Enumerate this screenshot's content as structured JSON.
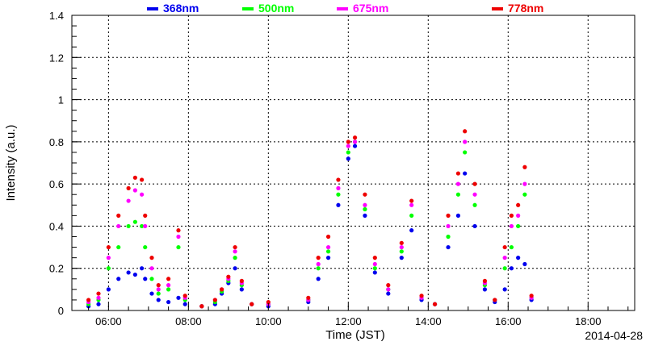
{
  "chart_data": {
    "type": "scatter",
    "title": "",
    "xlabel": "Time (JST)",
    "ylabel": "Intensity (a.u.)",
    "date_label": "2014-04-28",
    "grid": true,
    "legend_position": "top",
    "xlim": [
      "05:05",
      "19:10"
    ],
    "ylim": [
      0,
      1.4
    ],
    "x_ticks": [
      "06:00",
      "08:00",
      "10:00",
      "12:00",
      "14:00",
      "16:00",
      "18:00"
    ],
    "y_ticks": [
      "0",
      "0.2",
      "0.4",
      "0.6",
      "0.8",
      "1",
      "1.2",
      "1.4"
    ],
    "series": [
      {
        "name": "368nm",
        "color": "#0000ee",
        "points": [
          [
            "05:30",
            0.02
          ],
          [
            "05:45",
            0.03
          ],
          [
            "06:00",
            0.1
          ],
          [
            "06:15",
            0.15
          ],
          [
            "06:30",
            0.18
          ],
          [
            "06:40",
            0.17
          ],
          [
            "06:50",
            0.2
          ],
          [
            "06:55",
            0.15
          ],
          [
            "07:05",
            0.08
          ],
          [
            "07:15",
            0.05
          ],
          [
            "07:30",
            0.04
          ],
          [
            "07:45",
            0.06
          ],
          [
            "07:55",
            0.03
          ],
          [
            "08:20",
            0.02
          ],
          [
            "08:40",
            0.03
          ],
          [
            "08:50",
            0.08
          ],
          [
            "09:00",
            0.13
          ],
          [
            "09:10",
            0.2
          ],
          [
            "09:20",
            0.1
          ],
          [
            "09:35",
            0.03
          ],
          [
            "10:00",
            0.02
          ],
          [
            "11:00",
            0.04
          ],
          [
            "11:15",
            0.15
          ],
          [
            "11:30",
            0.25
          ],
          [
            "11:45",
            0.5
          ],
          [
            "12:00",
            0.72
          ],
          [
            "12:10",
            0.78
          ],
          [
            "12:25",
            0.45
          ],
          [
            "12:40",
            0.18
          ],
          [
            "13:00",
            0.08
          ],
          [
            "13:20",
            0.25
          ],
          [
            "13:35",
            0.38
          ],
          [
            "13:50",
            0.05
          ],
          [
            "14:10",
            0.03
          ],
          [
            "14:30",
            0.3
          ],
          [
            "14:45",
            0.45
          ],
          [
            "14:55",
            0.65
          ],
          [
            "15:10",
            0.4
          ],
          [
            "15:25",
            0.1
          ],
          [
            "15:40",
            0.04
          ],
          [
            "15:55",
            0.1
          ],
          [
            "16:05",
            0.2
          ],
          [
            "16:15",
            0.25
          ],
          [
            "16:25",
            0.22
          ],
          [
            "16:35",
            0.05
          ]
        ]
      },
      {
        "name": "500nm",
        "color": "#00ff00",
        "points": [
          [
            "05:30",
            0.03
          ],
          [
            "05:45",
            0.05
          ],
          [
            "06:00",
            0.2
          ],
          [
            "06:15",
            0.3
          ],
          [
            "06:30",
            0.4
          ],
          [
            "06:40",
            0.42
          ],
          [
            "06:50",
            0.4
          ],
          [
            "06:55",
            0.3
          ],
          [
            "07:05",
            0.15
          ],
          [
            "07:15",
            0.08
          ],
          [
            "07:30",
            0.1
          ],
          [
            "07:45",
            0.3
          ],
          [
            "07:55",
            0.05
          ],
          [
            "08:20",
            0.02
          ],
          [
            "08:40",
            0.04
          ],
          [
            "08:50",
            0.09
          ],
          [
            "09:00",
            0.14
          ],
          [
            "09:10",
            0.25
          ],
          [
            "09:20",
            0.12
          ],
          [
            "09:35",
            0.03
          ],
          [
            "10:00",
            0.03
          ],
          [
            "11:00",
            0.05
          ],
          [
            "11:15",
            0.2
          ],
          [
            "11:30",
            0.28
          ],
          [
            "11:45",
            0.55
          ],
          [
            "12:00",
            0.75
          ],
          [
            "12:10",
            0.8
          ],
          [
            "12:25",
            0.48
          ],
          [
            "12:40",
            0.2
          ],
          [
            "13:00",
            0.1
          ],
          [
            "13:20",
            0.28
          ],
          [
            "13:35",
            0.45
          ],
          [
            "13:50",
            0.06
          ],
          [
            "14:10",
            0.03
          ],
          [
            "14:30",
            0.35
          ],
          [
            "14:45",
            0.55
          ],
          [
            "14:55",
            0.75
          ],
          [
            "15:10",
            0.5
          ],
          [
            "15:25",
            0.12
          ],
          [
            "15:40",
            0.05
          ],
          [
            "15:55",
            0.2
          ],
          [
            "16:05",
            0.3
          ],
          [
            "16:15",
            0.4
          ],
          [
            "16:25",
            0.55
          ],
          [
            "16:35",
            0.06
          ]
        ]
      },
      {
        "name": "675nm",
        "color": "#ff00ff",
        "points": [
          [
            "05:30",
            0.04
          ],
          [
            "05:45",
            0.06
          ],
          [
            "06:00",
            0.25
          ],
          [
            "06:15",
            0.4
          ],
          [
            "06:30",
            0.52
          ],
          [
            "06:40",
            0.57
          ],
          [
            "06:50",
            0.55
          ],
          [
            "06:55",
            0.4
          ],
          [
            "07:05",
            0.2
          ],
          [
            "07:15",
            0.1
          ],
          [
            "07:30",
            0.12
          ],
          [
            "07:45",
            0.35
          ],
          [
            "07:55",
            0.06
          ],
          [
            "08:20",
            0.02
          ],
          [
            "08:40",
            0.05
          ],
          [
            "08:50",
            0.1
          ],
          [
            "09:00",
            0.15
          ],
          [
            "09:10",
            0.28
          ],
          [
            "09:20",
            0.13
          ],
          [
            "09:35",
            0.03
          ],
          [
            "10:00",
            0.03
          ],
          [
            "11:00",
            0.05
          ],
          [
            "11:15",
            0.22
          ],
          [
            "11:30",
            0.3
          ],
          [
            "11:45",
            0.58
          ],
          [
            "12:00",
            0.78
          ],
          [
            "12:10",
            0.8
          ],
          [
            "12:25",
            0.5
          ],
          [
            "12:40",
            0.22
          ],
          [
            "13:00",
            0.1
          ],
          [
            "13:20",
            0.3
          ],
          [
            "13:35",
            0.5
          ],
          [
            "13:50",
            0.06
          ],
          [
            "14:10",
            0.03
          ],
          [
            "14:30",
            0.4
          ],
          [
            "14:45",
            0.6
          ],
          [
            "14:55",
            0.8
          ],
          [
            "15:10",
            0.55
          ],
          [
            "15:25",
            0.13
          ],
          [
            "15:40",
            0.05
          ],
          [
            "15:55",
            0.25
          ],
          [
            "16:05",
            0.4
          ],
          [
            "16:15",
            0.45
          ],
          [
            "16:25",
            0.6
          ],
          [
            "16:35",
            0.06
          ]
        ]
      },
      {
        "name": "778nm",
        "color": "#ee0000",
        "points": [
          [
            "05:30",
            0.05
          ],
          [
            "05:45",
            0.08
          ],
          [
            "06:00",
            0.3
          ],
          [
            "06:15",
            0.45
          ],
          [
            "06:30",
            0.58
          ],
          [
            "06:40",
            0.63
          ],
          [
            "06:50",
            0.62
          ],
          [
            "06:55",
            0.45
          ],
          [
            "07:05",
            0.25
          ],
          [
            "07:15",
            0.12
          ],
          [
            "07:30",
            0.15
          ],
          [
            "07:45",
            0.38
          ],
          [
            "07:55",
            0.07
          ],
          [
            "08:20",
            0.02
          ],
          [
            "08:40",
            0.05
          ],
          [
            "08:50",
            0.1
          ],
          [
            "09:00",
            0.16
          ],
          [
            "09:10",
            0.3
          ],
          [
            "09:20",
            0.14
          ],
          [
            "09:35",
            0.03
          ],
          [
            "10:00",
            0.04
          ],
          [
            "11:00",
            0.06
          ],
          [
            "11:15",
            0.25
          ],
          [
            "11:30",
            0.35
          ],
          [
            "11:45",
            0.62
          ],
          [
            "12:00",
            0.8
          ],
          [
            "12:10",
            0.82
          ],
          [
            "12:25",
            0.55
          ],
          [
            "12:40",
            0.25
          ],
          [
            "13:00",
            0.12
          ],
          [
            "13:20",
            0.32
          ],
          [
            "13:35",
            0.52
          ],
          [
            "13:50",
            0.07
          ],
          [
            "14:10",
            0.03
          ],
          [
            "14:30",
            0.45
          ],
          [
            "14:45",
            0.65
          ],
          [
            "14:55",
            0.85
          ],
          [
            "15:10",
            0.6
          ],
          [
            "15:25",
            0.14
          ],
          [
            "15:40",
            0.05
          ],
          [
            "15:55",
            0.3
          ],
          [
            "16:05",
            0.45
          ],
          [
            "16:15",
            0.5
          ],
          [
            "16:25",
            0.68
          ],
          [
            "16:35",
            0.07
          ]
        ]
      }
    ]
  }
}
